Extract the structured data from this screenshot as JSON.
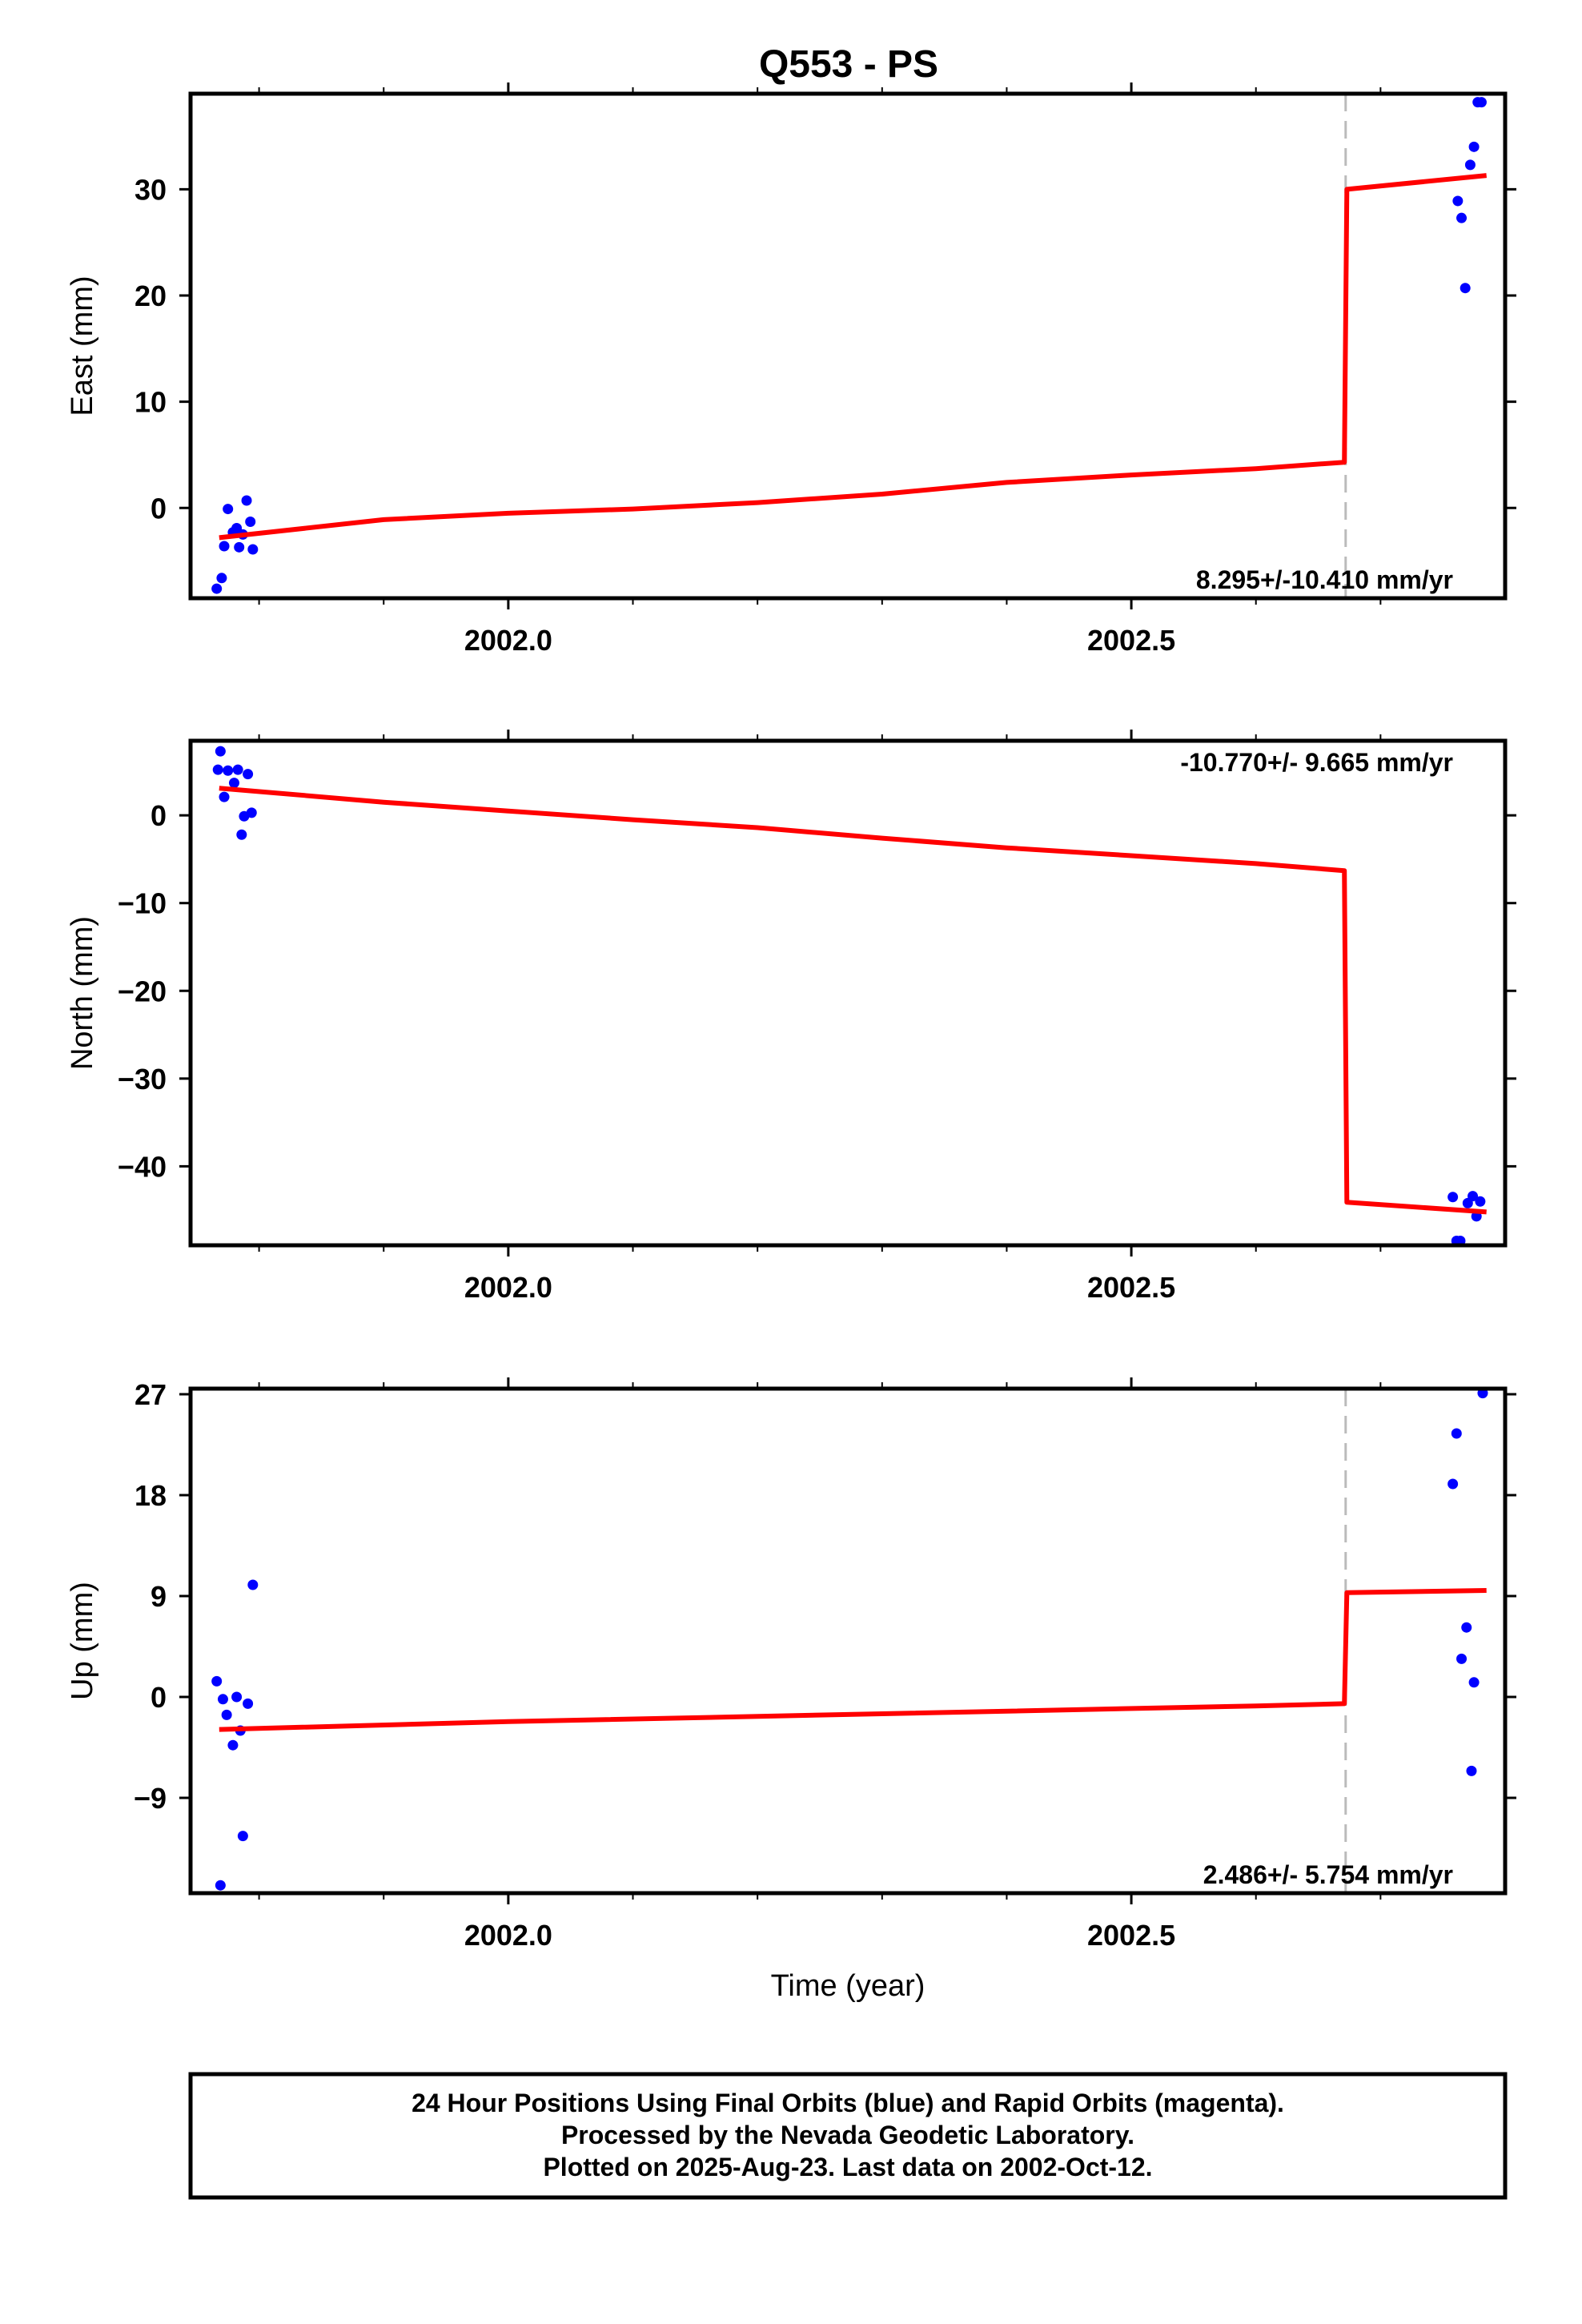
{
  "title": "Q553 - PS",
  "colors": {
    "data": "#0000ff",
    "model": "#ff0000",
    "step": "#bbbbbb"
  },
  "caption": [
    "24 Hour Positions Using Final Orbits (blue) and Rapid Orbits (magenta).",
    "Processed by the Nevada Geodetic Laboratory.",
    "Plotted on 2025-Aug-23. Last data on 2002-Oct-12."
  ],
  "chart_data": [
    {
      "type": "scatter",
      "name": "east",
      "ylabel": "East (mm)",
      "xlabel": "",
      "xlim": [
        2001.745,
        2002.8
      ],
      "ylim": [
        -8.5,
        39
      ],
      "xticks": [
        2002.0,
        2002.5
      ],
      "xtick_labels": [
        "2002.0",
        "2002.5"
      ],
      "yticks": [
        0,
        10,
        20,
        30
      ],
      "ytick_labels": [
        "0",
        "10",
        "20",
        "30"
      ],
      "rate_label": "8.295+/-10.410 mm/yr",
      "rate_pos": "bottom-right",
      "step_x": 2002.672,
      "points": [
        [
          2001.766,
          -7.6
        ],
        [
          2001.77,
          -6.6
        ],
        [
          2001.772,
          -3.6
        ],
        [
          2001.775,
          -0.1
        ],
        [
          2001.779,
          -2.3
        ],
        [
          2001.782,
          -1.9
        ],
        [
          2001.784,
          -3.7
        ],
        [
          2001.787,
          -2.5
        ],
        [
          2001.79,
          0.7
        ],
        [
          2001.793,
          -1.3
        ],
        [
          2001.795,
          -3.9
        ],
        [
          2002.762,
          28.9
        ],
        [
          2002.765,
          27.3
        ],
        [
          2002.768,
          20.7
        ],
        [
          2002.772,
          32.3
        ],
        [
          2002.775,
          34.0
        ],
        [
          2002.778,
          38.2
        ],
        [
          2002.781,
          38.2
        ]
      ],
      "model": [
        [
          2001.768,
          -2.8
        ],
        [
          2001.9,
          -1.1
        ],
        [
          2002.0,
          -0.5
        ],
        [
          2002.1,
          -0.1
        ],
        [
          2002.2,
          0.5
        ],
        [
          2002.3,
          1.3
        ],
        [
          2002.4,
          2.4
        ],
        [
          2002.5,
          3.1
        ],
        [
          2002.6,
          3.7
        ],
        [
          2002.671,
          4.3
        ],
        [
          2002.673,
          30.0
        ],
        [
          2002.785,
          31.3
        ]
      ]
    },
    {
      "type": "scatter",
      "name": "north",
      "ylabel": "North (mm)",
      "xlabel": "",
      "xlim": [
        2001.745,
        2002.8
      ],
      "ylim": [
        -49,
        8.5
      ],
      "xticks": [
        2002.0,
        2002.5
      ],
      "xtick_labels": [
        "2002.0",
        "2002.5"
      ],
      "yticks": [
        0,
        -10,
        -20,
        -30,
        -40
      ],
      "ytick_labels": [
        "0",
        "−10",
        "−20",
        "−30",
        "−40"
      ],
      "rate_label": "-10.770+/- 9.665 mm/yr",
      "rate_pos": "top-right",
      "step_x": null,
      "points": [
        [
          2001.767,
          5.2
        ],
        [
          2001.769,
          7.3
        ],
        [
          2001.772,
          2.1
        ],
        [
          2001.775,
          5.1
        ],
        [
          2001.78,
          3.7
        ],
        [
          2001.783,
          5.2
        ],
        [
          2001.786,
          -2.2
        ],
        [
          2001.788,
          -0.1
        ],
        [
          2001.791,
          4.7
        ],
        [
          2001.794,
          0.3
        ],
        [
          2002.758,
          -43.5
        ],
        [
          2002.761,
          -48.5
        ],
        [
          2002.764,
          -48.5
        ],
        [
          2002.77,
          -44.2
        ],
        [
          2002.774,
          -43.4
        ],
        [
          2002.777,
          -45.7
        ],
        [
          2002.78,
          -44.0
        ]
      ],
      "model": [
        [
          2001.768,
          3.1
        ],
        [
          2001.9,
          1.5
        ],
        [
          2002.0,
          0.5
        ],
        [
          2002.1,
          -0.5
        ],
        [
          2002.2,
          -1.4
        ],
        [
          2002.3,
          -2.6
        ],
        [
          2002.4,
          -3.7
        ],
        [
          2002.5,
          -4.6
        ],
        [
          2002.6,
          -5.5
        ],
        [
          2002.671,
          -6.3
        ],
        [
          2002.673,
          -44.1
        ],
        [
          2002.785,
          -45.2
        ]
      ]
    },
    {
      "type": "scatter",
      "name": "up",
      "ylabel": "Up (mm)",
      "xlabel": "Time (year)",
      "xlim": [
        2001.745,
        2002.8
      ],
      "ylim": [
        -17.5,
        27.5
      ],
      "xticks": [
        2002.0,
        2002.5
      ],
      "xtick_labels": [
        "2002.0",
        "2002.5"
      ],
      "yticks": [
        27,
        18,
        9,
        0,
        -9
      ],
      "ytick_labels": [
        "27",
        "18",
        "9",
        "0",
        "−9"
      ],
      "rate_label": "2.486+/- 5.754 mm/yr",
      "rate_pos": "bottom-right",
      "step_x": 2002.672,
      "points": [
        [
          2001.766,
          1.4
        ],
        [
          2001.769,
          -16.8
        ],
        [
          2001.771,
          -0.2
        ],
        [
          2001.774,
          -1.6
        ],
        [
          2001.779,
          -4.3
        ],
        [
          2001.782,
          0.0
        ],
        [
          2001.785,
          -3.0
        ],
        [
          2001.787,
          -12.4
        ],
        [
          2001.791,
          -0.6
        ],
        [
          2001.795,
          10.0
        ],
        [
          2002.758,
          19.0
        ],
        [
          2002.761,
          23.5
        ],
        [
          2002.765,
          3.4
        ],
        [
          2002.769,
          6.2
        ],
        [
          2002.775,
          1.3
        ],
        [
          2002.773,
          -6.6
        ],
        [
          2002.782,
          27.1
        ]
      ],
      "model": [
        [
          2001.768,
          -2.9
        ],
        [
          2002.0,
          -2.2
        ],
        [
          2002.3,
          -1.5
        ],
        [
          2002.6,
          -0.8
        ],
        [
          2002.671,
          -0.6
        ],
        [
          2002.673,
          9.3
        ],
        [
          2002.785,
          9.5
        ]
      ]
    }
  ]
}
